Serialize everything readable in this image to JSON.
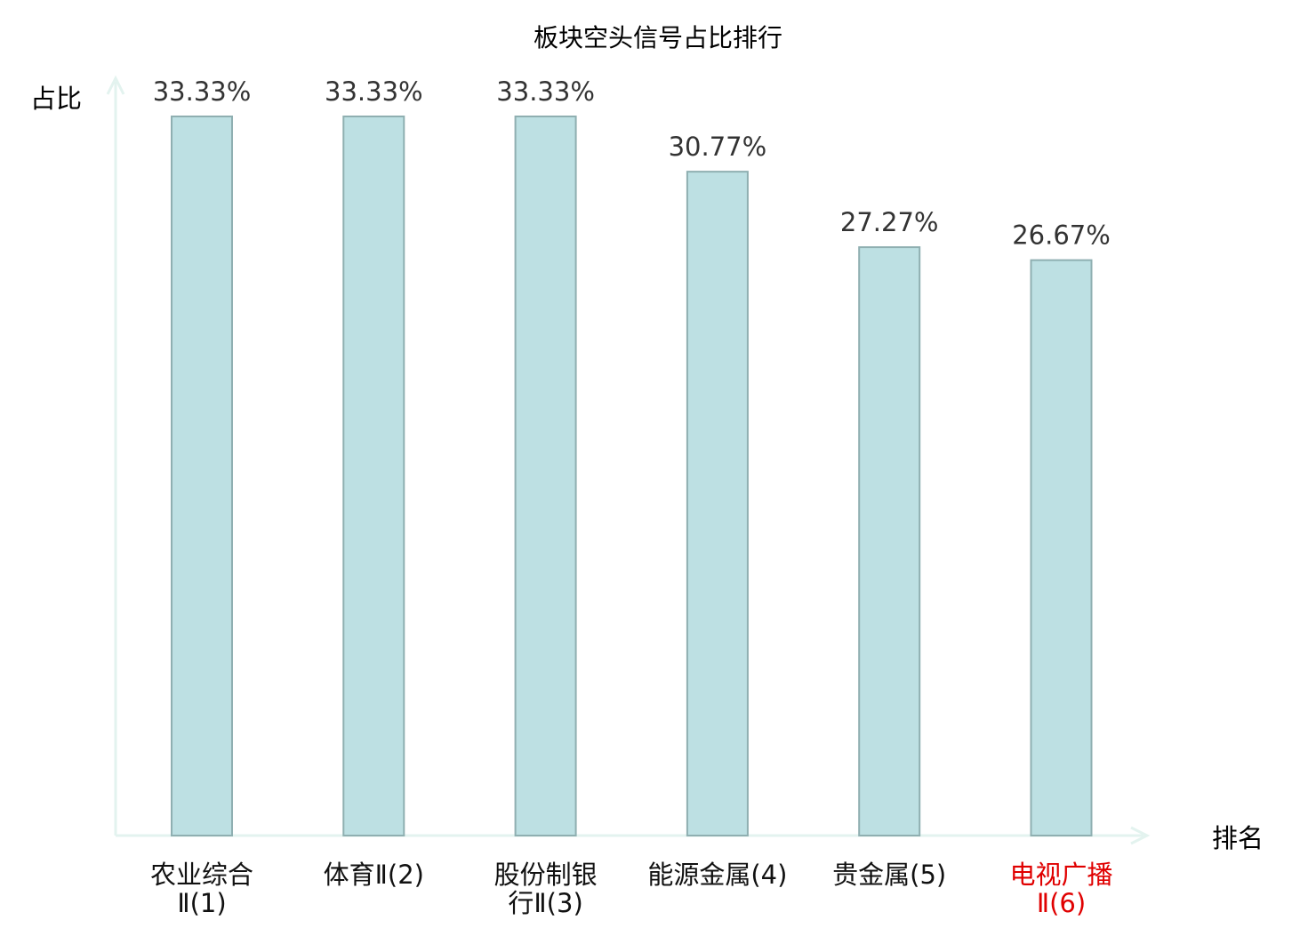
{
  "chart_data": {
    "type": "bar",
    "title": "板块空头信号占比排行",
    "ylabel": "占比",
    "xlabel": "排名",
    "categories": [
      [
        "农业综合",
        "Ⅱ(1)"
      ],
      [
        "体育Ⅱ(2)"
      ],
      [
        "股份制银",
        "行Ⅱ(3)"
      ],
      [
        "能源金属(4)"
      ],
      [
        "贵金属(5)"
      ],
      [
        "电视广播",
        "Ⅱ(6)"
      ]
    ],
    "values": [
      33.33,
      33.33,
      33.33,
      30.77,
      27.27,
      26.67
    ],
    "value_labels": [
      "33.33%",
      "33.33%",
      "33.33%",
      "30.77%",
      "27.27%",
      "26.67%"
    ],
    "ylim": [
      0,
      33.33
    ],
    "grid": false,
    "legend": "none",
    "colors": {
      "bar_fill": "#bde0e3",
      "bar_stroke": "#8fafb1",
      "axis": "#e3f3ef",
      "text": "#333333",
      "label": "#111111",
      "highlight_label": "#e00000"
    },
    "highlight_index": 5
  }
}
